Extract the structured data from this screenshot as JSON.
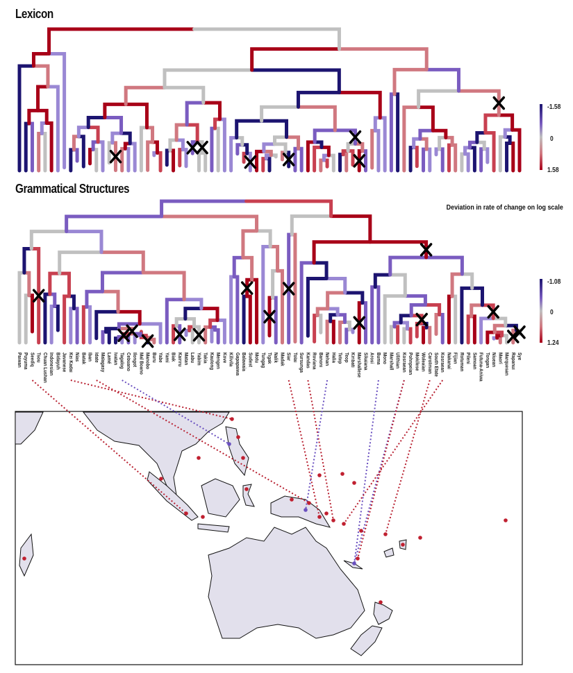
{
  "panels": {
    "lexicon": {
      "title": "Lexicon",
      "legend": {
        "min": "-1.58",
        "mid": "0",
        "max": "1.58"
      }
    },
    "grammar": {
      "title": "Grammatical Structures",
      "legend": {
        "min": "-1.08",
        "mid": "0",
        "max": "1.24"
      }
    }
  },
  "legend_title": "Deviation in rate of change on log scale",
  "colors": {
    "negative": "#1c1470",
    "mid_neg": "#7a5cc0",
    "neutral": "#c0c0c0",
    "mid_pos": "#d07880",
    "positive": "#a80018"
  },
  "languages": [
    "Paiwan",
    "Puyuma",
    "Seediq",
    "Tsou",
    "Chuan Lushan",
    "Indonesian",
    "Bidayuh",
    "Javanese",
    "Kei Kadai",
    "Nias",
    "Batak",
    "Iban",
    "Idate",
    "Malagasy",
    "Lamé",
    "Ivatan",
    "Tagalog",
    "Cebuano",
    "Ilongot",
    "Mal Boano",
    "Manobo",
    "Buru",
    "Yabe",
    "Yami",
    "Biak",
    "Kairiru",
    "Matan",
    "Labu",
    "Yabim",
    "Takia",
    "Kaulong",
    "Mengen",
    "Kove",
    "Kilivila",
    "Gapapaiwa",
    "Balawaia",
    "Sudest",
    "Motu",
    "Tungag",
    "Tigak",
    "Nalik",
    "Madak",
    "Siar",
    "Tolai",
    "Sursunga",
    "Kandas",
    "Roviana",
    "Banoni",
    "Nehan",
    "Halia",
    "Tetep",
    "Teop",
    "Kiribati",
    "Marshallese",
    "Sikaiana",
    "Arosi",
    "Buma",
    "Mono",
    "Marshall",
    "Ulithian",
    "Kosraean",
    "Pohnpeian",
    "Mokilese",
    "Woleaian",
    "Carolinian",
    "South Efate",
    "Kosraean",
    "Nakanai",
    "Fijian",
    "Rotuman",
    "Pileni",
    "Samoan",
    "Futuna-Aniwa",
    "Tongan",
    "Niuean",
    "Maori",
    "Marquesan",
    "Rapanui",
    "Sye"
  ],
  "crosses": {
    "lexicon": 8,
    "grammar": 15
  }
}
